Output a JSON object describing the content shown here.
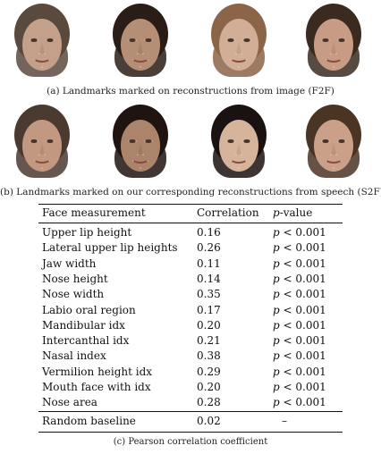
{
  "caption_a": "(a) Landmarks marked on reconstructions from image (F2F)",
  "caption_b": "(b) Landmarks marked on our corresponding reconstructions from speech (S2F)",
  "caption_c": "(c) Pearson correlation coefficient",
  "faces_f2f": [
    {
      "name": "face-f2f-1",
      "hair": "#5a4a3e",
      "skin": "#c4a08a"
    },
    {
      "name": "face-f2f-2",
      "hair": "#2a1c16",
      "skin": "#b58e76"
    },
    {
      "name": "face-f2f-3",
      "hair": "#8c6448",
      "skin": "#d2ae96"
    },
    {
      "name": "face-f2f-4",
      "hair": "#3a2a20",
      "skin": "#c89c84"
    }
  ],
  "faces_s2f": [
    {
      "name": "face-s2f-1",
      "hair": "#4a3a30",
      "skin": "#c29880"
    },
    {
      "name": "face-s2f-2",
      "hair": "#1f1410",
      "skin": "#ac846c"
    },
    {
      "name": "face-s2f-3",
      "hair": "#1a1210",
      "skin": "#d6b49c"
    },
    {
      "name": "face-s2f-4",
      "hair": "#4a3424",
      "skin": "#caa088"
    }
  ],
  "table": {
    "header": {
      "measurement": "Face measurement",
      "correlation": "Correlation",
      "pvalue_italic": "p",
      "pvalue_rest": "-value"
    },
    "rows": [
      {
        "m": "Upper lip height",
        "c": "0.16",
        "p": "p",
        "pv": " < 0.001"
      },
      {
        "m": "Lateral upper lip heights",
        "c": "0.26",
        "p": "p",
        "pv": " < 0.001"
      },
      {
        "m": "Jaw width",
        "c": "0.11",
        "p": "p",
        "pv": " < 0.001"
      },
      {
        "m": "Nose height",
        "c": "0.14",
        "p": "p",
        "pv": " < 0.001"
      },
      {
        "m": "Nose width",
        "c": "0.35",
        "p": "p",
        "pv": " < 0.001"
      },
      {
        "m": "Labio oral region",
        "c": "0.17",
        "p": "p",
        "pv": " < 0.001"
      },
      {
        "m": "Mandibular idx",
        "c": "0.20",
        "p": "p",
        "pv": " < 0.001"
      },
      {
        "m": "Intercanthal idx",
        "c": "0.21",
        "p": "p",
        "pv": " < 0.001"
      },
      {
        "m": "Nasal index",
        "c": "0.38",
        "p": "p",
        "pv": " < 0.001"
      },
      {
        "m": "Vermilion height idx",
        "c": "0.29",
        "p": "p",
        "pv": " < 0.001"
      },
      {
        "m": "Mouth face with idx",
        "c": "0.20",
        "p": "p",
        "pv": " < 0.001"
      },
      {
        "m": "Nose area",
        "c": "0.28",
        "p": "p",
        "pv": " < 0.001"
      }
    ],
    "baseline": {
      "m": "Random baseline",
      "c": "0.02",
      "p": "–"
    }
  }
}
